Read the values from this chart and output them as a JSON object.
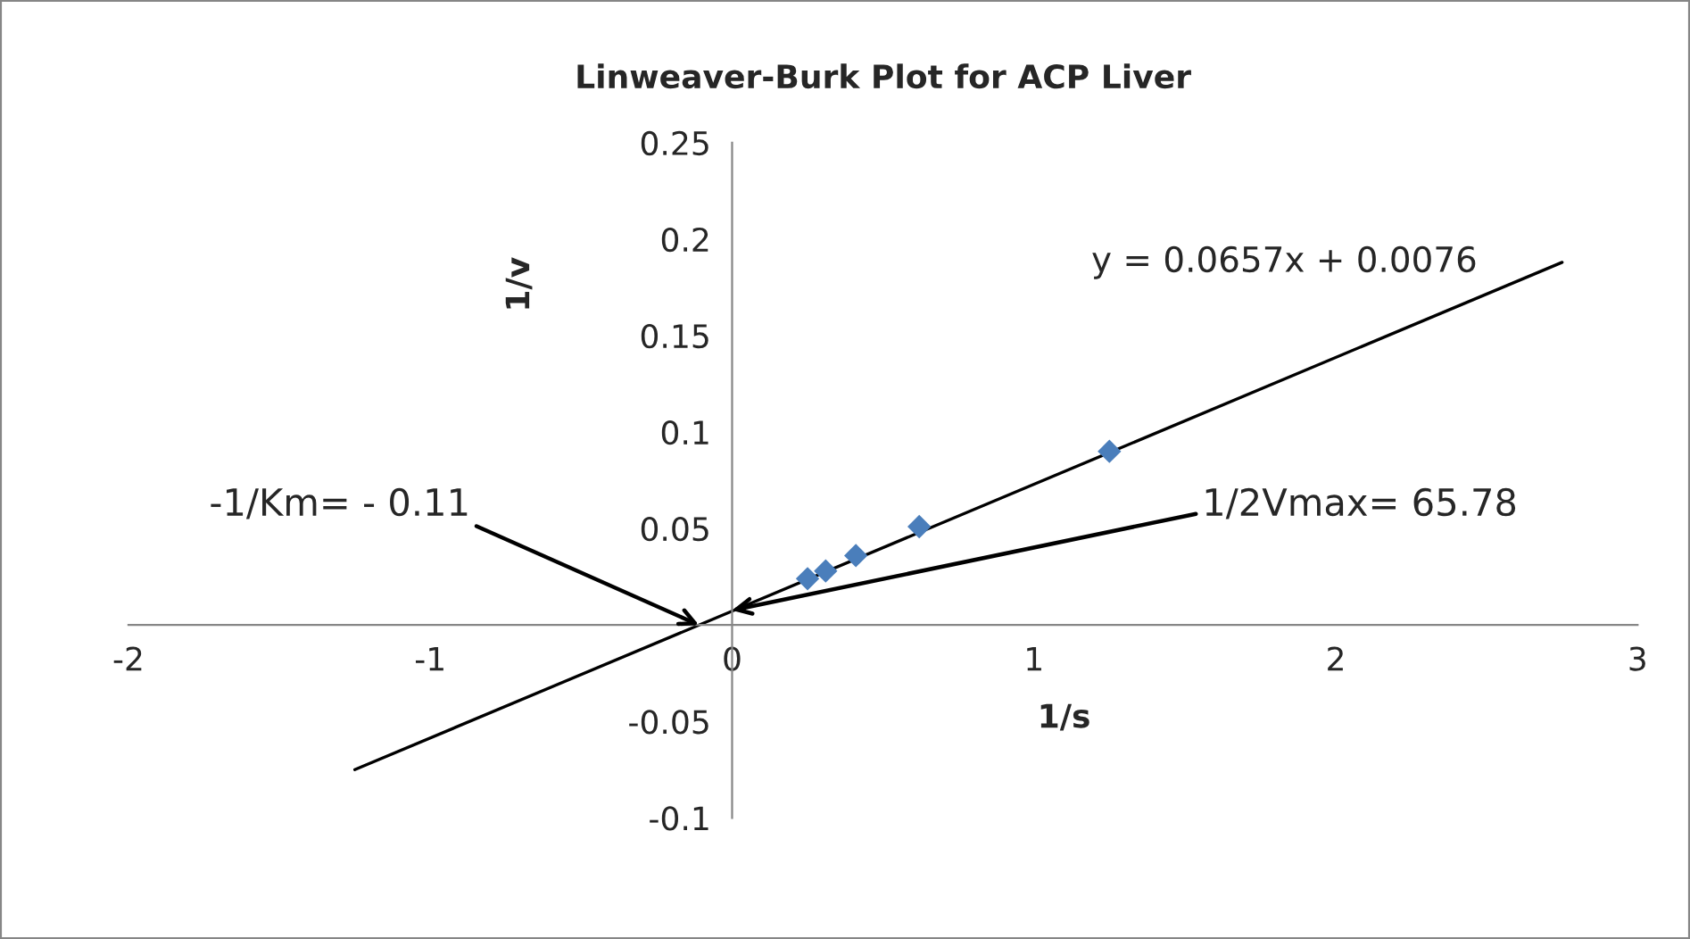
{
  "chart_data": {
    "type": "scatter",
    "title": "Linweaver-Burk Plot for ACP Liver",
    "xlabel": "1/s",
    "ylabel": "1/v",
    "series": [
      {
        "color": "#4a7ebb",
        "marker": "diamond",
        "x": [
          0.25,
          0.31,
          0.41,
          0.62,
          1.25
        ],
        "values": [
          0.024,
          0.028,
          0.036,
          0.051,
          0.09
        ]
      },
      {
        "type": "line",
        "color": "#000000",
        "marker": "none",
        "x": [
          -1.25,
          2.75
        ],
        "values": [
          -0.075,
          0.188
        ]
      }
    ],
    "xlim": [
      -2,
      3
    ],
    "ylim": [
      -0.1,
      0.25
    ],
    "xticks": [
      -2,
      -1,
      0,
      1,
      2,
      3
    ],
    "yticks": [
      -0.1,
      -0.05,
      0.05,
      0.1,
      0.15,
      0.2,
      0.25
    ],
    "annotations": [
      {
        "text": "-1/Km= - 0.11",
        "x": -0.11,
        "y": 0
      },
      {
        "text": "1/2Vmax= 65.78",
        "x": 0,
        "y": 0.0076
      },
      "y = 0.0657x + 0.0076"
    ],
    "grid": false,
    "legend": false
  }
}
